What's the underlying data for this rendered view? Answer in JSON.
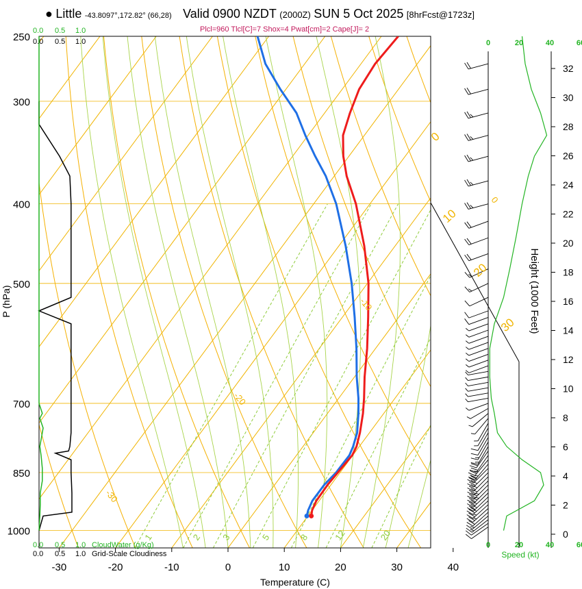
{
  "header": {
    "station": "Little",
    "coords": "-43.8097°,172.82° (66,28)",
    "valid": "Valid 0900 NZDT",
    "utc": "(2000Z)",
    "date": "SUN 5 Oct 2025",
    "forecast": "[8hrFcst@1723z]",
    "params": "Plcl=960 Tlcl[C]=7 Shox=4 Pwat[cm]=2 Cape[J]= 2"
  },
  "colors": {
    "temperature": "#ee1c1c",
    "dewpoint": "#1f6fe5",
    "isotherm": "#f0b400",
    "dry_adiabat": "#f5b000",
    "moist_adiabat": "#a8d44a",
    "mixing_ratio": "#8fcc3a",
    "green": "#22b422",
    "params": "#c2185b"
  },
  "chart_data": {
    "type": "skew-t",
    "title": "Valid 0900 NZDT (2000Z) SUN 5 Oct 2025",
    "xlabel": "Temperature (C)",
    "ylabel": "P (hPa)",
    "right_axis_label": "Height (1000 Feet)",
    "x_ticks": [
      "-30",
      "-20",
      "-10",
      "0",
      "10",
      "20",
      "30",
      "40"
    ],
    "x_tick_values": [
      -30,
      -20,
      -10,
      0,
      10,
      20,
      30,
      40
    ],
    "pressure_ticks": [
      "250",
      "300",
      "400",
      "500",
      "700",
      "850",
      "1000"
    ],
    "pressure_tick_values": [
      250,
      300,
      400,
      500,
      700,
      850,
      1000
    ],
    "height_ticks": [
      "0",
      "2",
      "4",
      "6",
      "8",
      "10",
      "12",
      "14",
      "16",
      "18",
      "20",
      "22",
      "24",
      "26",
      "28",
      "30",
      "32"
    ],
    "height_tick_values": [
      0,
      2,
      4,
      6,
      8,
      10,
      12,
      14,
      16,
      18,
      20,
      22,
      24,
      26,
      28,
      30,
      32
    ],
    "temperature_profile": {
      "name": "Temperature",
      "p": [
        960,
        945,
        920,
        880,
        850,
        810,
        790,
        760,
        720,
        690,
        650,
        600,
        550,
        500,
        450,
        400,
        370,
        350,
        330,
        310,
        290,
        270,
        250
      ],
      "t": [
        10.6,
        10.0,
        9.5,
        9.4,
        9.6,
        9.9,
        9.5,
        8.3,
        6.3,
        4.5,
        1.8,
        -1.5,
        -5.4,
        -9.8,
        -15.5,
        -22.5,
        -27.8,
        -31.0,
        -33.8,
        -35.5,
        -37.0,
        -37.5,
        -37.0
      ]
    },
    "dewpoint_profile": {
      "name": "Dewpoint",
      "p": [
        960,
        945,
        920,
        880,
        850,
        810,
        790,
        760,
        720,
        690,
        650,
        600,
        550,
        500,
        450,
        400,
        370,
        350,
        330,
        310,
        290,
        270,
        250
      ],
      "td": [
        9.8,
        9.3,
        8.8,
        8.8,
        9.3,
        9.4,
        8.9,
        7.8,
        5.5,
        3.5,
        0.4,
        -3.4,
        -7.8,
        -12.8,
        -18.8,
        -26.0,
        -31.5,
        -36.0,
        -40.5,
        -45.0,
        -51.0,
        -57.0,
        -62.0
      ]
    },
    "isotherm_labels": [
      "10",
      "0",
      "-10",
      "-20",
      "-30"
    ],
    "isotherm_label_values": [
      10,
      0,
      -10,
      -20,
      -30
    ],
    "dry_adiabat_labels": [
      "0",
      "10",
      "20",
      "30"
    ],
    "dry_adiabat_label_values": [
      0,
      10,
      20,
      30
    ],
    "mixing_ratio_labels": [
      "1",
      "2",
      "3",
      "5",
      "8",
      "12",
      "20"
    ],
    "mixing_ratio_values": [
      1,
      2,
      3,
      5,
      8,
      12,
      20
    ],
    "cloud_water": {
      "label": "CloudWater (g/Kg)",
      "ticks": [
        "0.0",
        "0.5",
        "1.0"
      ],
      "p": [
        1000,
        960,
        930,
        900,
        870,
        840,
        810,
        790,
        770,
        750,
        730,
        720,
        700,
        650,
        500,
        400,
        250
      ],
      "v": [
        0.0,
        0.02,
        0.03,
        0.03,
        0.08,
        0.08,
        0.05,
        0.02,
        0.06,
        0.1,
        0.02,
        0.08,
        0.0,
        0.0,
        0.0,
        0.0,
        0.0
      ]
    },
    "cloudiness": {
      "label": "Grid-Scale Cloudiness",
      "ticks": [
        "0.0",
        "0.5",
        "1.0"
      ],
      "p": [
        1000,
        960,
        950,
        900,
        850,
        820,
        805,
        800,
        790,
        760,
        700,
        600,
        560,
        540,
        520,
        480,
        400,
        370,
        350,
        320,
        300
      ],
      "v": [
        0.0,
        0.1,
        0.8,
        0.8,
        0.78,
        0.78,
        0.4,
        0.72,
        0.75,
        0.78,
        0.78,
        0.78,
        0.78,
        0.0,
        0.78,
        0.78,
        0.78,
        0.75,
        0.5,
        0.0,
        0.0
      ]
    },
    "wind_speed": {
      "label": "Speed (kt)",
      "ticks": [
        "0",
        "20",
        "40",
        "60"
      ],
      "p": [
        1000,
        960,
        920,
        880,
        850,
        820,
        790,
        760,
        720,
        690,
        650,
        600,
        560,
        520,
        480,
        440,
        400,
        370,
        350,
        330,
        310,
        290,
        270,
        250
      ],
      "kt": [
        10,
        12,
        30,
        36,
        34,
        22,
        12,
        6,
        4,
        2,
        1,
        1,
        4,
        10,
        14,
        18,
        22,
        26,
        30,
        38,
        34,
        28,
        24,
        22
      ]
    },
    "wind_barbs": {
      "p": [
        990,
        980,
        970,
        960,
        950,
        940,
        930,
        920,
        910,
        900,
        890,
        880,
        870,
        860,
        850,
        840,
        830,
        820,
        810,
        800,
        790,
        780,
        770,
        760,
        750,
        740,
        730,
        720,
        710,
        700,
        690,
        680,
        670,
        660,
        650,
        640,
        630,
        620,
        610,
        600,
        590,
        580,
        570,
        560,
        550,
        540,
        520,
        500,
        480,
        460,
        440,
        420,
        400,
        375,
        350,
        330,
        310,
        290,
        270
      ],
      "direction": [
        235,
        235,
        232,
        230,
        228,
        228,
        228,
        228,
        226,
        226,
        225,
        225,
        225,
        225,
        225,
        225,
        220,
        220,
        215,
        215,
        210,
        210,
        210,
        210,
        210,
        210,
        220,
        230,
        240,
        250,
        260,
        260,
        260,
        260,
        260,
        260,
        250,
        250,
        250,
        250,
        250,
        250,
        250,
        250,
        250,
        250,
        245,
        245,
        245,
        250,
        250,
        250,
        255,
        255,
        255,
        255,
        255,
        255,
        255
      ],
      "speed_kt": [
        10,
        12,
        15,
        18,
        22,
        25,
        28,
        30,
        32,
        34,
        35,
        35,
        34,
        33,
        32,
        30,
        28,
        25,
        22,
        20,
        18,
        15,
        12,
        10,
        8,
        8,
        8,
        8,
        8,
        8,
        5,
        5,
        5,
        5,
        5,
        5,
        5,
        5,
        5,
        5,
        5,
        5,
        5,
        5,
        10,
        10,
        10,
        15,
        15,
        20,
        20,
        20,
        25,
        25,
        25,
        25,
        25,
        20,
        20
      ]
    }
  }
}
